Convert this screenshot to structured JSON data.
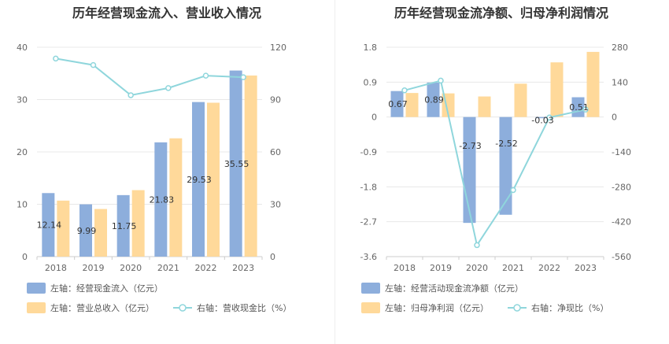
{
  "charts": [
    {
      "title": "历年经营现金流入、营业收入情况",
      "chart_data": {
        "type": "bar",
        "categories": [
          "2018",
          "2019",
          "2020",
          "2021",
          "2022",
          "2023"
        ],
        "series": [
          {
            "name": "左轴：经营现金流入（亿元）",
            "type": "bar",
            "axis": "left",
            "color": "#8DAEDC",
            "values": [
              12.14,
              9.99,
              11.75,
              21.83,
              29.53,
              35.55
            ],
            "labels": [
              "12.14",
              "9.99",
              "11.75",
              "21.83",
              "29.53",
              "35.55"
            ]
          },
          {
            "name": "左轴：营业总收入（亿元）",
            "type": "bar",
            "axis": "left",
            "color": "#FFD99A",
            "values": [
              10.7,
              9.1,
              12.7,
              22.6,
              29.4,
              34.6
            ]
          },
          {
            "name": "右轴：营收现金比（%）",
            "type": "line",
            "axis": "right",
            "color": "#8FD6DC",
            "values": [
              113.5,
              109.8,
              92.5,
              96.6,
              103.7,
              102.8
            ]
          }
        ],
        "left_axis": {
          "min": 0,
          "max": 40,
          "ticks": [
            0,
            10,
            20,
            30,
            40
          ],
          "tick_labels": [
            "0",
            "10",
            "20",
            "30",
            "40"
          ]
        },
        "right_axis": {
          "min": 0,
          "max": 120,
          "ticks": [
            0,
            30,
            60,
            90,
            120
          ],
          "tick_labels": [
            "0",
            "30",
            "60",
            "90",
            "120"
          ]
        },
        "grid": true,
        "legend_position": "bottom-left"
      }
    },
    {
      "title": "历年经营现金流净额、归母净利润情况",
      "chart_data": {
        "type": "bar",
        "categories": [
          "2018",
          "2019",
          "2020",
          "2021",
          "2022",
          "2023"
        ],
        "series": [
          {
            "name": "左轴：经营活动现金流净额（亿元）",
            "type": "bar",
            "axis": "left",
            "color": "#8DAEDC",
            "values": [
              0.67,
              0.89,
              -2.73,
              -2.52,
              -0.03,
              0.51
            ],
            "labels": [
              "0.67",
              "0.89",
              "-2.73",
              "-2.52",
              "-0.03",
              "0.51"
            ]
          },
          {
            "name": "左轴：归母净利润（亿元）",
            "type": "bar",
            "axis": "left",
            "color": "#FFD99A",
            "values": [
              0.62,
              0.61,
              0.53,
              0.86,
              1.41,
              1.68
            ]
          },
          {
            "name": "右轴：净现比（%）",
            "type": "line",
            "axis": "right",
            "color": "#8FD6DC",
            "values": [
              107,
              146,
              -514,
              -293,
              -2,
              30
            ]
          }
        ],
        "left_axis": {
          "min": -3.6,
          "max": 1.8,
          "ticks": [
            -3.6,
            -2.7,
            -1.8,
            -0.9,
            0,
            0.9,
            1.8
          ],
          "tick_labels": [
            "-3.6",
            "-2.7",
            "-1.8",
            "-0.9",
            "0",
            "0.9",
            "1.8"
          ]
        },
        "right_axis": {
          "min": -560,
          "max": 280,
          "ticks": [
            -560,
            -420,
            -280,
            -140,
            0,
            140,
            280
          ],
          "tick_labels": [
            "-560",
            "-420",
            "-280",
            "-140",
            "0",
            "140",
            "280"
          ]
        },
        "grid": true,
        "legend_position": "bottom-left"
      }
    }
  ]
}
